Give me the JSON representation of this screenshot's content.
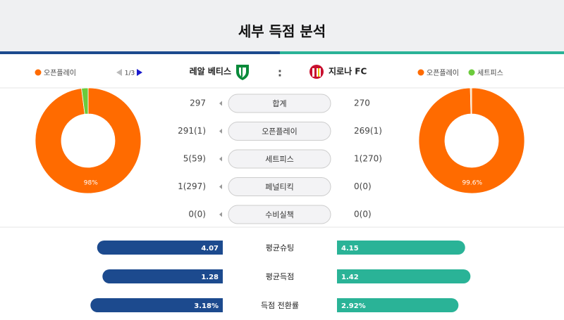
{
  "header": {
    "title": "세부 득점 분석"
  },
  "home": {
    "team": "레알 베티스",
    "pager": "1/3",
    "legend": [
      {
        "name": "오픈플레이",
        "color": "#ff6b00"
      }
    ],
    "pie": [
      {
        "value": 98,
        "label": "98%",
        "color": "#ff6b00"
      },
      {
        "value": 2,
        "color": "#6ccb3c"
      }
    ]
  },
  "away": {
    "team": "지로나 FC",
    "legend": [
      {
        "name": "오픈플레이",
        "color": "#ff6b00"
      },
      {
        "name": "세트피스",
        "color": "#6ccb3c"
      }
    ],
    "pie": [
      {
        "value": 99.6,
        "label": "99.6%",
        "color": "#ff6b00"
      },
      {
        "value": 0.4,
        "color": "#f3d9a8"
      }
    ]
  },
  "table": {
    "rows": [
      {
        "label": "합계",
        "home": "297",
        "away": "270"
      },
      {
        "label": "오픈플레이",
        "home": "291(1)",
        "away": "269(1)"
      },
      {
        "label": "세트피스",
        "home": "5(59)",
        "away": "1(270)"
      },
      {
        "label": "페널티킥",
        "home": "1(297)",
        "away": "0(0)"
      },
      {
        "label": "수비실책",
        "home": "0(0)",
        "away": "0(0)"
      }
    ]
  },
  "averages": {
    "home_color": "#1c4a8e",
    "away_color": "#2ab397",
    "rows": [
      {
        "label": "평균슈팅",
        "home": 4.07,
        "away": 4.15
      },
      {
        "label": "평균득점",
        "home": 1.28,
        "away": 1.42
      },
      {
        "label": "득점 전환률",
        "home": 3.18,
        "home_label": "3.18%",
        "away": 2.92,
        "away_label": "2.92%"
      }
    ]
  }
}
